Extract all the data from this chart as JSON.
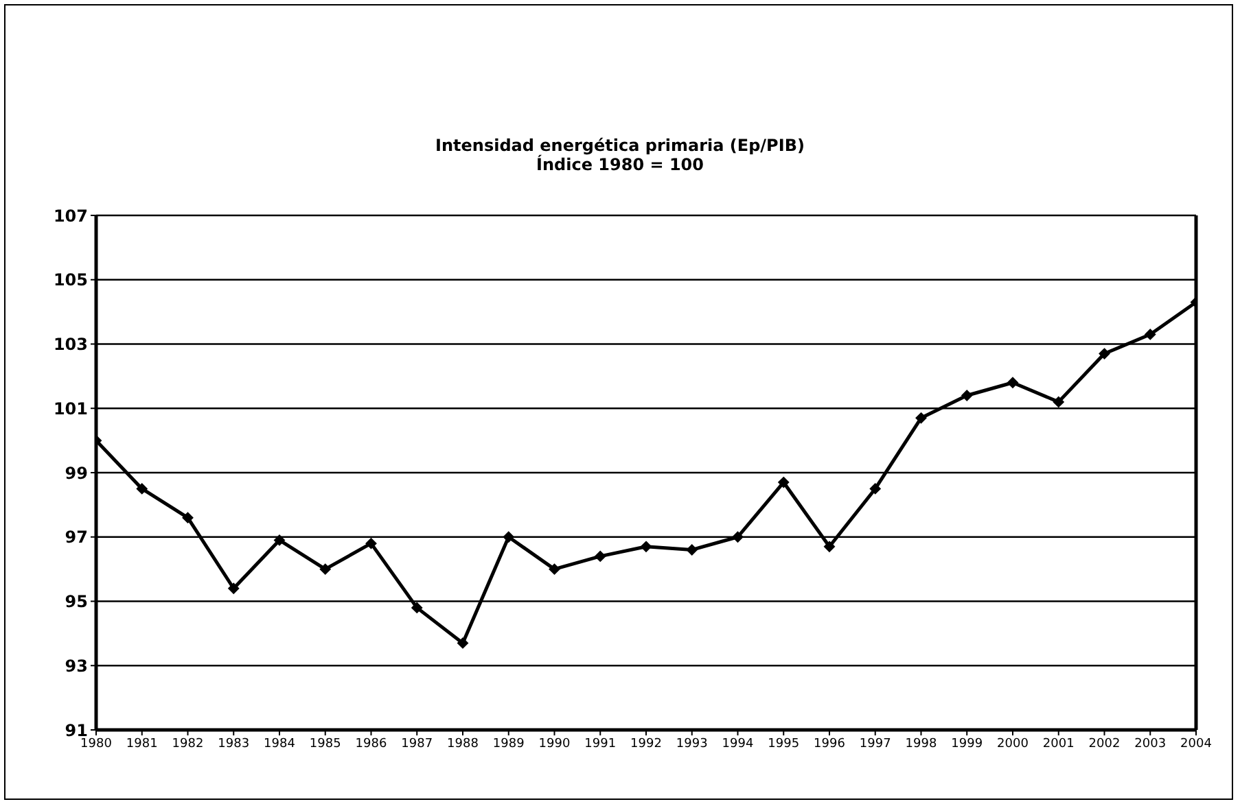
{
  "chart_data": {
    "type": "line",
    "title": "Intensidad energética primaria (Ep/PIB)",
    "subtitle": "Índice 1980 = 100",
    "categories": [
      "1980",
      "1981",
      "1982",
      "1983",
      "1984",
      "1985",
      "1986",
      "1987",
      "1988",
      "1989",
      "1990",
      "1991",
      "1992",
      "1993",
      "1994",
      "1995",
      "1996",
      "1997",
      "1998",
      "1999",
      "2000",
      "2001",
      "2002",
      "2003",
      "2004"
    ],
    "series": [
      {
        "color": "#000000",
        "values": [
          100.0,
          98.5,
          97.6,
          95.4,
          96.9,
          96.0,
          96.8,
          94.8,
          93.7,
          97.0,
          96.0,
          96.4,
          96.7,
          96.6,
          97.0,
          98.7,
          96.7,
          98.5,
          100.7,
          101.4,
          101.8,
          101.2,
          102.7,
          103.3,
          104.3
        ]
      }
    ],
    "ylim": [
      91,
      107
    ],
    "yticks": [
      91,
      93,
      95,
      97,
      99,
      101,
      103,
      105,
      107
    ],
    "grid": "y",
    "legend": false,
    "marker": "diamond",
    "line_style": "solid"
  }
}
